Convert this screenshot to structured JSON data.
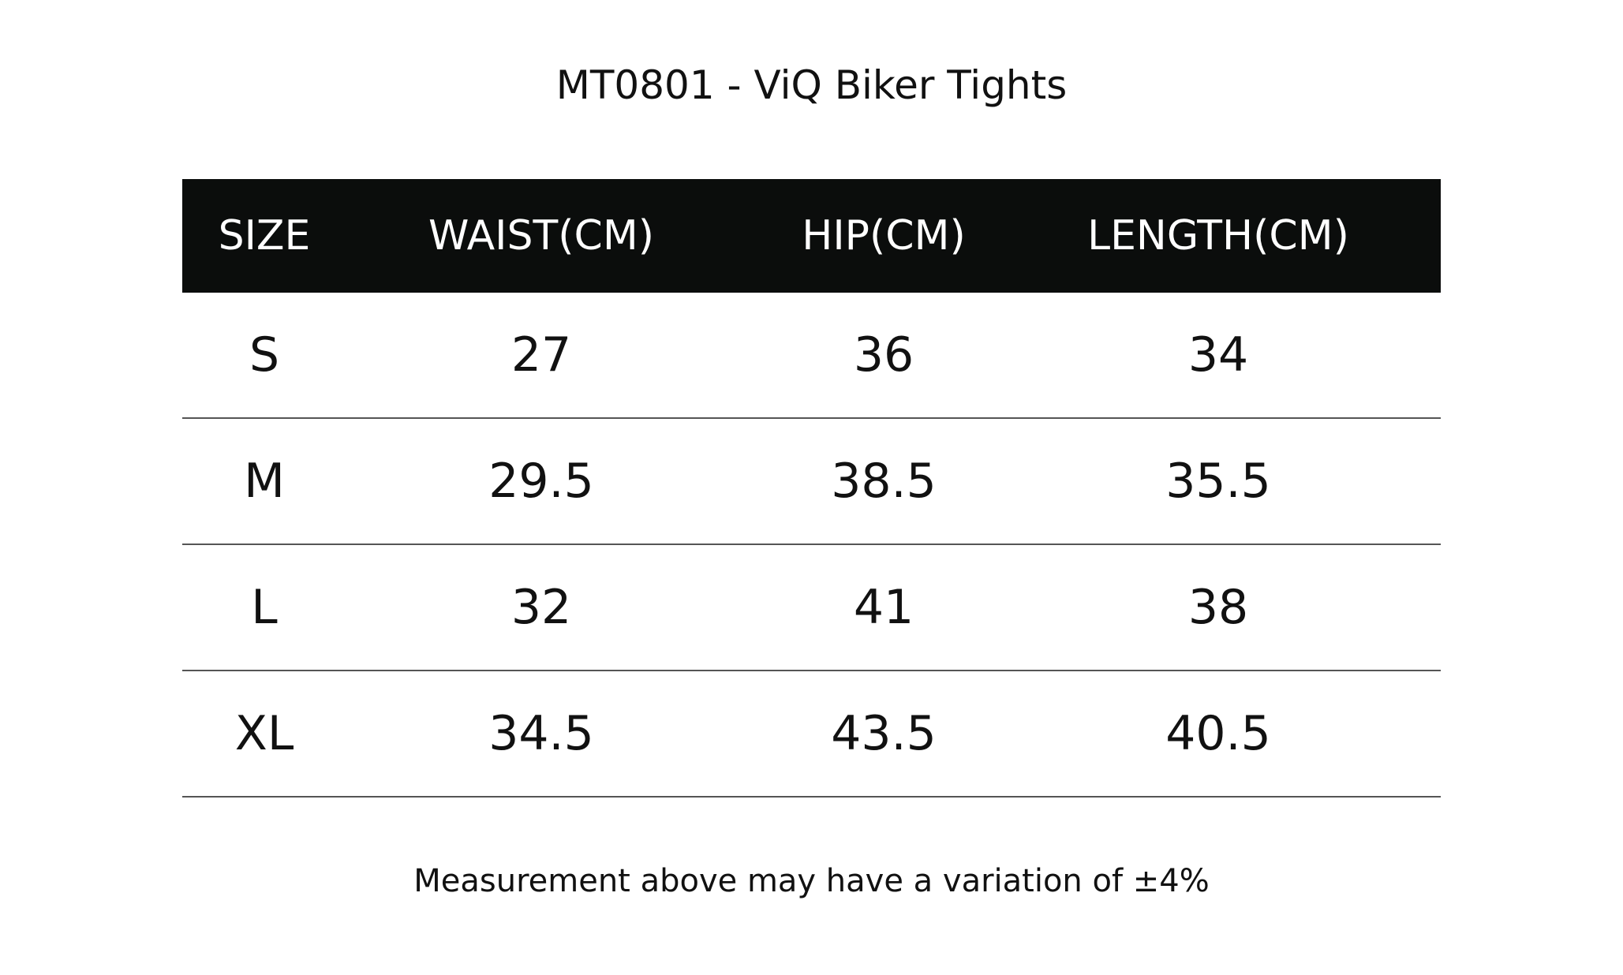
{
  "header": {
    "title": "MT0801 - ViQ Biker Tights"
  },
  "table": {
    "columns": [
      "SIZE",
      "WAIST(CM)",
      "HIP(CM)",
      "LENGTH(CM)"
    ],
    "rows": [
      [
        "S",
        27,
        36,
        34
      ],
      [
        "M",
        29.5,
        38.5,
        35.5
      ],
      [
        "L",
        32,
        41,
        38
      ],
      [
        "XL",
        34.5,
        43.5,
        40.5
      ]
    ]
  },
  "footnote": "Measurement above may have a variation of ±4%"
}
